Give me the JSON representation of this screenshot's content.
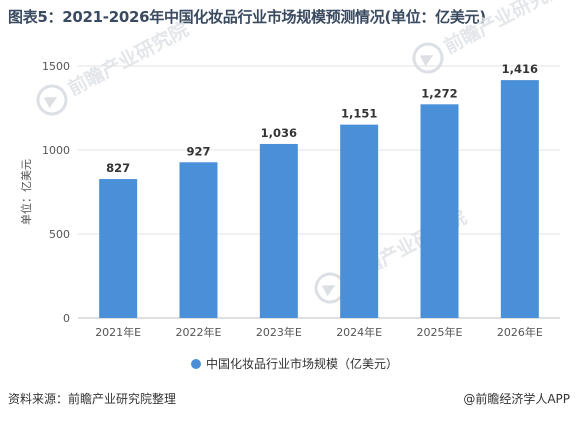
{
  "header": {
    "title": "图表5：2021-2026年中国化妆品行业市场规模预测情况(单位：亿美元)"
  },
  "chart_data": {
    "type": "bar",
    "categories": [
      "2021年E",
      "2022年E",
      "2023年E",
      "2024年E",
      "2025年E",
      "2026年E"
    ],
    "series": [
      {
        "name": "中国化妆品行业市场规模（亿美元）",
        "values": [
          827,
          927,
          1036,
          1151,
          1272,
          1416
        ],
        "value_labels": [
          "827",
          "927",
          "1,036",
          "1,151",
          "1,272",
          "1,416"
        ],
        "color": "#4a90d9"
      }
    ],
    "ylabel": "单位：亿美元",
    "ylim": [
      0,
      1500
    ],
    "yticks": [
      "0",
      "500",
      "1000",
      "1500"
    ],
    "grid": true,
    "legend": "bottom-center"
  },
  "watermark": "前瞻产业研究院",
  "footer": {
    "source": "资料来源：前瞻产业研究院整理",
    "brand": "@前瞻经济学人APP"
  }
}
